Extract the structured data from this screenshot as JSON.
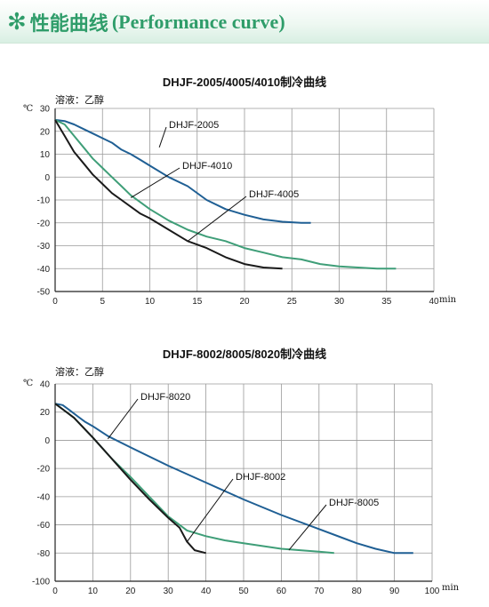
{
  "header": {
    "icon": "snowflake-icon",
    "title_cn": "性能曲线",
    "title_en": "(Performance curve)",
    "accent": "#2f9d6a"
  },
  "chart_data": [
    {
      "type": "line",
      "title": "DHJF-2005/4005/4010制冷曲线",
      "medium": "溶液：乙醇",
      "yunit": "℃",
      "xunit": "min",
      "xlim": [
        0,
        40
      ],
      "ylim": [
        -50,
        30
      ],
      "xticks": [
        "0",
        "5",
        "10",
        "15",
        "20",
        "25",
        "30",
        "35",
        "40"
      ],
      "yticks": [
        "30",
        "20",
        "10",
        "0",
        "-10",
        "-20",
        "-30",
        "-40",
        "-50"
      ],
      "grid": true,
      "series": [
        {
          "name": "DHJF-2005",
          "color": "#1f5f94",
          "x": [
            0,
            1,
            2,
            3,
            4,
            5,
            6,
            7,
            8,
            9,
            10,
            12,
            14,
            16,
            18,
            20,
            22,
            24,
            26,
            27
          ],
          "y": [
            25,
            24.5,
            23,
            21,
            19,
            17,
            15,
            12,
            10,
            7.5,
            5,
            0,
            -4,
            -10,
            -14,
            -16.5,
            -18.5,
            -19.5,
            -20,
            -20
          ]
        },
        {
          "name": "DHJF-4010",
          "color": "#3f9e78",
          "x": [
            0,
            1,
            2,
            3,
            4,
            5,
            6,
            7,
            8,
            9,
            10,
            12,
            14,
            16,
            18,
            20,
            22,
            24,
            26,
            28,
            30,
            32,
            34,
            36
          ],
          "y": [
            25,
            23,
            18,
            13,
            8,
            4,
            0,
            -4,
            -8,
            -11,
            -14,
            -19,
            -23,
            -26,
            -28,
            -31,
            -33,
            -35,
            -36,
            -38,
            -39,
            -39.5,
            -40,
            -40
          ]
        },
        {
          "name": "DHJF-4005",
          "color": "#1a1a1a",
          "x": [
            0,
            1,
            2,
            3,
            4,
            5,
            6,
            7,
            8,
            9,
            10,
            12,
            14,
            16,
            18,
            20,
            22,
            24
          ],
          "y": [
            25,
            18,
            11,
            6,
            1,
            -3,
            -7,
            -10,
            -13,
            -16,
            -18,
            -23,
            -28,
            -31,
            -35,
            -38,
            -39.5,
            -40
          ]
        }
      ]
    },
    {
      "type": "line",
      "title": "DHJF-8002/8005/8020制冷曲线",
      "medium": "溶液：乙醇",
      "yunit": "℃",
      "xunit": "min",
      "xlim": [
        0,
        100
      ],
      "ylim": [
        -100,
        40
      ],
      "xticks": [
        "0",
        "10",
        "20",
        "30",
        "40",
        "50",
        "60",
        "70",
        "80",
        "90",
        "100"
      ],
      "yticks": [
        "40",
        "20",
        "0",
        "-20",
        "-40",
        "-60",
        "-80",
        "-100"
      ],
      "grid": true,
      "series": [
        {
          "name": "DHJF-8020",
          "color": "#1f5f94",
          "x": [
            0,
            2,
            4,
            6,
            8,
            10,
            14,
            20,
            30,
            40,
            50,
            60,
            70,
            80,
            85,
            90,
            95
          ],
          "y": [
            26,
            25,
            21,
            17,
            13,
            10,
            3,
            -5,
            -18,
            -30,
            -42,
            -53,
            -63,
            -73,
            -77,
            -80,
            -80
          ]
        },
        {
          "name": "DHJF-8005",
          "color": "#3f9e78",
          "x": [
            0,
            2,
            5,
            10,
            15,
            20,
            25,
            30,
            35,
            40,
            45,
            50,
            55,
            60,
            65,
            70,
            74
          ],
          "y": [
            26,
            22,
            16,
            2,
            -13,
            -26,
            -40,
            -54,
            -64,
            -68,
            -71,
            -73,
            -75,
            -77,
            -78,
            -79,
            -80
          ]
        },
        {
          "name": "DHJF-8002",
          "color": "#1a1a1a",
          "x": [
            0,
            2,
            5,
            10,
            15,
            20,
            25,
            30,
            33,
            35,
            37,
            40
          ],
          "y": [
            26,
            22,
            16,
            2,
            -13,
            -28,
            -42,
            -55,
            -62,
            -72,
            -78,
            -80
          ]
        }
      ]
    }
  ]
}
